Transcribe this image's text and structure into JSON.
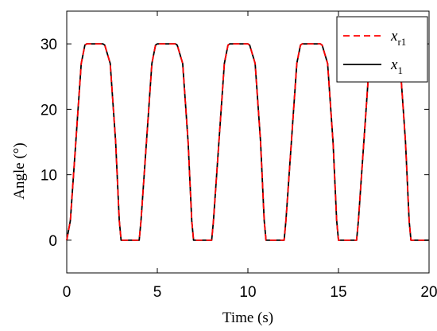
{
  "chart_data": {
    "type": "line",
    "xlabel": "Time (s)",
    "ylabel": "Angle (°)",
    "xlim": [
      0,
      20
    ],
    "ylim": [
      -5,
      35
    ],
    "xticks": [
      "0",
      "5",
      "10",
      "15",
      "20"
    ],
    "yticks": [
      "0",
      "10",
      "20",
      "30"
    ],
    "grid": false,
    "legend_position": "top-right",
    "series": [
      {
        "name": "x_r1",
        "label_main": "x",
        "label_sub": "r1",
        "style": "dashed",
        "color": "#ff0000",
        "x": [
          0,
          0.2,
          0.5,
          0.8,
          1.0,
          1.1,
          2.0,
          2.1,
          2.4,
          2.7,
          2.9,
          3.0,
          4.0,
          4.1,
          4.4,
          4.7,
          4.9,
          5.0,
          6.0,
          6.1,
          6.4,
          6.7,
          6.9,
          7.0,
          8.0,
          8.1,
          8.4,
          8.7,
          8.9,
          9.0,
          10.0,
          10.1,
          10.4,
          10.7,
          10.9,
          11.0,
          12.0,
          12.1,
          12.4,
          12.7,
          12.9,
          13.0,
          14.0,
          14.1,
          14.4,
          14.7,
          14.9,
          15.0,
          16.0,
          16.1,
          16.4,
          16.7,
          16.9,
          17.0,
          18.0,
          18.1,
          18.4,
          18.7,
          18.9,
          19.0,
          20.0
        ],
        "y": [
          0,
          3,
          15,
          27,
          29.8,
          30,
          30,
          29.8,
          27,
          15,
          3,
          0,
          0,
          3,
          15,
          27,
          29.8,
          30,
          30,
          29.8,
          27,
          15,
          3,
          0,
          0,
          3,
          15,
          27,
          29.8,
          30,
          30,
          29.8,
          27,
          15,
          3,
          0,
          0,
          3,
          15,
          27,
          29.8,
          30,
          30,
          29.8,
          27,
          15,
          3,
          0,
          0,
          3,
          15,
          27,
          29.8,
          30,
          30,
          29.8,
          27,
          15,
          3,
          0,
          0
        ]
      },
      {
        "name": "x_1",
        "label_main": "x",
        "label_sub": "1",
        "style": "solid",
        "color": "#000000",
        "x": [
          0,
          0.2,
          0.5,
          0.8,
          1.0,
          1.1,
          2.0,
          2.1,
          2.4,
          2.7,
          2.9,
          3.0,
          4.0,
          4.1,
          4.4,
          4.7,
          4.9,
          5.0,
          6.0,
          6.1,
          6.4,
          6.7,
          6.9,
          7.0,
          8.0,
          8.1,
          8.4,
          8.7,
          8.9,
          9.0,
          10.0,
          10.1,
          10.4,
          10.7,
          10.9,
          11.0,
          12.0,
          12.1,
          12.4,
          12.7,
          12.9,
          13.0,
          14.0,
          14.1,
          14.4,
          14.7,
          14.9,
          15.0,
          16.0,
          16.1,
          16.4,
          16.7,
          16.9,
          17.0,
          18.0,
          18.1,
          18.4,
          18.7,
          18.9,
          19.0,
          20.0
        ],
        "y": [
          0,
          3,
          15,
          27,
          29.8,
          30,
          30,
          29.8,
          27,
          15,
          3,
          0,
          0,
          3,
          15,
          27,
          29.8,
          30,
          30,
          29.8,
          27,
          15,
          3,
          0,
          0,
          3,
          15,
          27,
          29.8,
          30,
          30,
          29.8,
          27,
          15,
          3,
          0,
          0,
          3,
          15,
          27,
          29.8,
          30,
          30,
          29.8,
          27,
          15,
          3,
          0,
          0,
          3,
          15,
          27,
          29.8,
          30,
          30,
          29.8,
          27,
          15,
          3,
          0,
          0
        ]
      }
    ]
  }
}
